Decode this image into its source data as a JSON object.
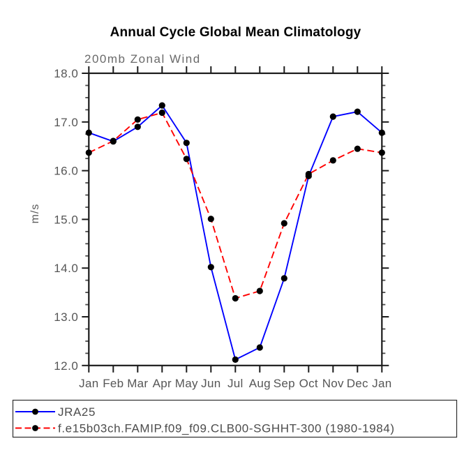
{
  "title": "Annual Cycle Global Mean Climatology",
  "chart_data": {
    "type": "line",
    "title": "Annual Cycle Global Mean Climatology",
    "subtitle": "200mb Zonal Wind",
    "ylabel": "m/s",
    "x_categories": [
      "Jan",
      "Feb",
      "Mar",
      "Apr",
      "May",
      "Jun",
      "Jul",
      "Aug",
      "Sep",
      "Oct",
      "Nov",
      "Dec",
      "Jan"
    ],
    "ylim": [
      12.0,
      18.0
    ],
    "ytick_major": [
      18,
      17,
      16,
      15,
      14,
      13,
      12
    ],
    "ytick_labels": [
      "18.0",
      "17.0",
      "16.0",
      "15.0",
      "14.0",
      "13.0",
      "12.0"
    ],
    "ytick_minor_step": 0.25,
    "grid": false,
    "legend_position": "bottom-left-box",
    "series": [
      {
        "name": "JRA25",
        "color": "#0000ff",
        "style": "solid",
        "marker": "filled-circle",
        "marker_color": "#000000",
        "values": [
          16.78,
          16.6,
          16.9,
          17.34,
          16.57,
          14.02,
          12.12,
          12.37,
          13.79,
          15.89,
          17.11,
          17.21,
          16.78
        ]
      },
      {
        "name": "f.e15b03ch.FAMIP.f09_f09.CLB00-SGHHT-300 (1980-1984)",
        "color": "#ff0000",
        "style": "dashed",
        "marker": "filled-circle",
        "marker_color": "#000000",
        "values": [
          16.37,
          16.61,
          17.05,
          17.19,
          16.24,
          15.01,
          13.38,
          13.53,
          14.92,
          15.93,
          16.21,
          16.45,
          16.37
        ]
      }
    ]
  },
  "colors": {
    "background": "#ffffff",
    "axis": "#1b1b1b",
    "tick_label": "#565656",
    "subtitle_text": "#6a6a6a",
    "legend_text": "#4c4c4c",
    "series_jra25": "#0000ff",
    "series_model": "#ff0000",
    "marker": "#000000"
  }
}
